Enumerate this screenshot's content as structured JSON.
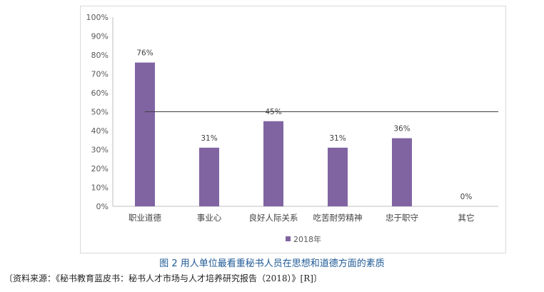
{
  "chart_data": {
    "type": "bar",
    "categories": [
      "职业道德",
      "事业心",
      "良好人际关系",
      "吃苦耐劳精神",
      "忠于职守",
      "其它"
    ],
    "series": [
      {
        "name": "2018年",
        "values": [
          76,
          31,
          45,
          31,
          36,
          0
        ],
        "color": "#8064a2"
      }
    ],
    "data_labels": [
      "76%",
      "31%",
      "45%",
      "31%",
      "36%",
      "0%"
    ],
    "y_ticks": [
      "0%",
      "10%",
      "20%",
      "30%",
      "40%",
      "50%",
      "60%",
      "70%",
      "80%",
      "90%",
      "100%"
    ],
    "ylim": [
      0,
      100
    ],
    "reference_line": 50,
    "grid": false,
    "legend_position": "bottom",
    "title": "",
    "xlabel": "",
    "ylabel": ""
  },
  "caption": "图 2 用人单位最看重秘书人员在思想和道德方面的素质",
  "source": "〔资料来源：《秘书教育蓝皮书：秘书人才市场与人才培养研究报告（2018）》[R]〕"
}
